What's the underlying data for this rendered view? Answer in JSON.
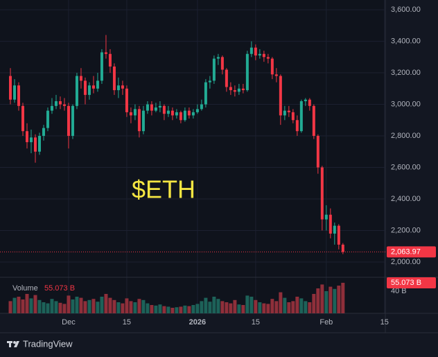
{
  "chart_data": {
    "type": "candlestick",
    "title": "$ETH",
    "brand": "TradingView",
    "up_color": "#22ab94",
    "down_color": "#f23645",
    "volume_up_color": "#1d6259",
    "volume_down_color": "#8f2f3a",
    "title_color": "#f5e642",
    "grid": true,
    "xlim": [
      -2.5,
      90.2
    ],
    "xticks": [
      {
        "value": 14,
        "label": "Dec"
      },
      {
        "value": 28,
        "label": "15"
      },
      {
        "value": 45,
        "label": "2026"
      },
      {
        "value": 59,
        "label": "15"
      },
      {
        "value": 76,
        "label": "Feb"
      },
      {
        "value": 90,
        "label": "15"
      }
    ],
    "ylim": [
      1903,
      3662
    ],
    "yticks": [
      {
        "value": 2000,
        "label": "2,000.00"
      },
      {
        "value": 2200,
        "label": "2,200.00"
      },
      {
        "value": 2400,
        "label": "2,400.00"
      },
      {
        "value": 2600,
        "label": "2,600.00"
      },
      {
        "value": 2800,
        "label": "2,800.00"
      },
      {
        "value": 3000,
        "label": "3,000.00"
      },
      {
        "value": 3200,
        "label": "3,200.00"
      },
      {
        "value": 3400,
        "label": "3,400.00"
      },
      {
        "value": 3600,
        "label": "3,600.00"
      }
    ],
    "open": [
      3180,
      3030,
      3120,
      2990,
      2830,
      2760,
      2790,
      2700,
      2800,
      2850,
      2960,
      2990,
      3020,
      3000,
      2990,
      2800,
      2990,
      3180,
      3150,
      3060,
      3120,
      3100,
      3150,
      3330,
      3320,
      3240,
      3090,
      3120,
      3100,
      2950,
      2930,
      2970,
      2830,
      2960,
      3000,
      2960,
      2980,
      2990,
      2940,
      2960,
      2930,
      2950,
      2900,
      2960,
      2930,
      2950,
      2970,
      3000,
      3140,
      3150,
      3290,
      3300,
      3220,
      3110,
      3090,
      3080,
      3100,
      3090,
      3320,
      3360,
      3310,
      3320,
      3300,
      3290,
      3190,
      3180,
      2930,
      2960,
      2950,
      2900,
      2830,
      3020,
      3030,
      2990,
      2800,
      2600,
      2270,
      2300,
      2180,
      2230,
      2110
    ],
    "high": [
      3230,
      3160,
      3140,
      3010,
      2880,
      2840,
      2810,
      2820,
      2870,
      2980,
      3040,
      3060,
      3050,
      3040,
      3010,
      3000,
      3200,
      3230,
      3170,
      3140,
      3180,
      3200,
      3350,
      3440,
      3350,
      3260,
      3170,
      3150,
      3120,
      2980,
      3000,
      2990,
      2990,
      3020,
      3020,
      3010,
      3020,
      3000,
      2990,
      2980,
      2970,
      2960,
      2980,
      2980,
      2970,
      3000,
      3030,
      3160,
      3180,
      3310,
      3320,
      3310,
      3230,
      3140,
      3120,
      3130,
      3130,
      3340,
      3400,
      3380,
      3350,
      3340,
      3320,
      3300,
      3230,
      3190,
      2990,
      2990,
      2970,
      2930,
      3030,
      3040,
      3040,
      3000,
      2810,
      2610,
      2360,
      2340,
      2250,
      2240,
      2120
    ],
    "low": [
      3000,
      3010,
      2960,
      2800,
      2720,
      2690,
      2630,
      2680,
      2770,
      2830,
      2940,
      2970,
      2970,
      2960,
      2720,
      2780,
      2970,
      3100,
      3000,
      3030,
      3070,
      3080,
      3130,
      3290,
      3200,
      3060,
      3040,
      3060,
      2920,
      2880,
      2900,
      2790,
      2810,
      2940,
      2930,
      2950,
      2950,
      2900,
      2920,
      2900,
      2910,
      2880,
      2890,
      2910,
      2910,
      2940,
      2960,
      2980,
      3100,
      3130,
      3250,
      3190,
      3080,
      3060,
      3050,
      3060,
      3070,
      3080,
      3300,
      3280,
      3290,
      3270,
      3260,
      3160,
      3140,
      2870,
      2900,
      2920,
      2880,
      2800,
      2820,
      2990,
      2960,
      2780,
      2560,
      2200,
      2200,
      2150,
      2110,
      2080,
      2050
    ],
    "close": [
      3030,
      3120,
      2990,
      2830,
      2760,
      2790,
      2700,
      2800,
      2850,
      2960,
      2990,
      3020,
      3000,
      2990,
      2800,
      2990,
      3180,
      3150,
      3060,
      3120,
      3100,
      3150,
      3330,
      3320,
      3240,
      3090,
      3120,
      3100,
      2950,
      2930,
      2970,
      2830,
      2960,
      3000,
      2960,
      2980,
      2990,
      2940,
      2960,
      2930,
      2950,
      2900,
      2960,
      2930,
      2950,
      2970,
      3000,
      3140,
      3150,
      3290,
      3300,
      3220,
      3110,
      3090,
      3080,
      3100,
      3090,
      3320,
      3360,
      3310,
      3320,
      3300,
      3290,
      3190,
      3180,
      2930,
      2960,
      2950,
      2900,
      2830,
      3020,
      3030,
      2990,
      2800,
      2600,
      2270,
      2300,
      2180,
      2230,
      2110,
      2063.97
    ],
    "last_label": "2,063.97",
    "volume_name": "Volume",
    "volume": [
      22,
      28,
      30,
      25,
      35,
      27,
      33,
      24,
      20,
      18,
      26,
      22,
      19,
      17,
      32,
      25,
      30,
      28,
      22,
      24,
      26,
      21,
      30,
      35,
      28,
      24,
      20,
      18,
      27,
      22,
      20,
      26,
      24,
      18,
      15,
      14,
      16,
      13,
      12,
      10,
      11,
      12,
      14,
      13,
      15,
      17,
      22,
      28,
      21,
      30,
      26,
      22,
      20,
      18,
      24,
      16,
      15,
      32,
      30,
      24,
      20,
      18,
      17,
      26,
      22,
      38,
      28,
      20,
      22,
      30,
      27,
      22,
      20,
      35,
      45,
      52,
      40,
      48,
      44,
      50,
      55.073
    ],
    "volume_last_label": "55.073 B",
    "volume_ylim": [
      0,
      65
    ],
    "volume_yticks": [
      {
        "value": 40,
        "label": "40 B"
      }
    ]
  }
}
